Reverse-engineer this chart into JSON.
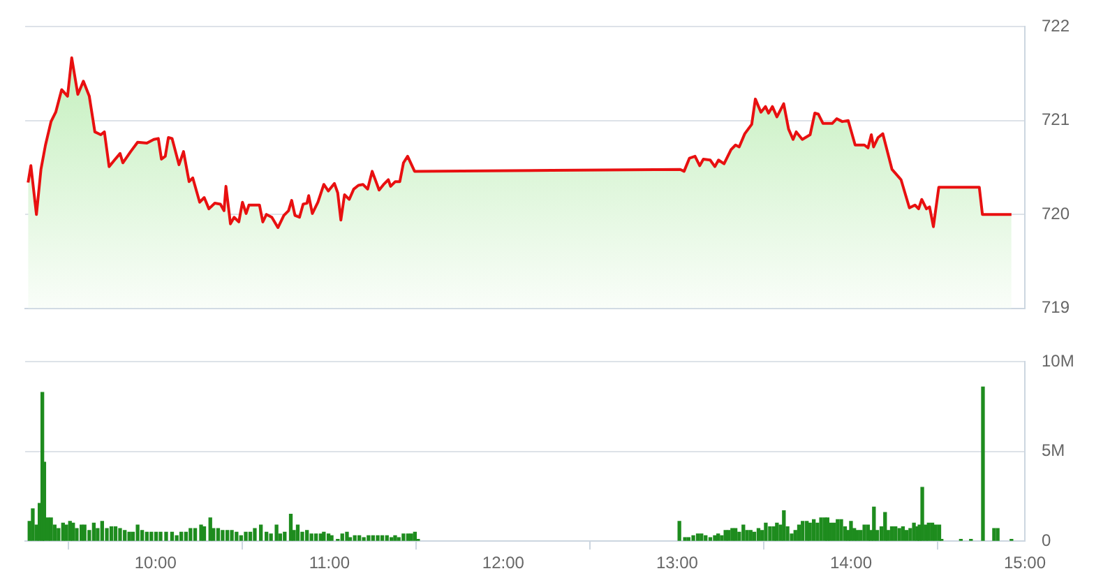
{
  "chart_data": [
    {
      "type": "area",
      "xlim": [
        9.25,
        15
      ],
      "ylim": [
        719,
        722
      ],
      "yticks": [
        719,
        720,
        721,
        722
      ],
      "grid": "y",
      "legend": false,
      "tick_labels": "y",
      "marker": "none",
      "series": [
        {
          "color": "#e81010",
          "x": [
            9.267,
            9.283,
            9.315,
            9.341,
            9.367,
            9.399,
            9.426,
            9.46,
            9.494,
            9.518,
            9.553,
            9.585,
            9.619,
            9.651,
            9.685,
            9.706,
            9.733,
            9.764,
            9.796,
            9.812,
            9.857,
            9.897,
            9.95,
            9.99,
            10.016,
            10.034,
            10.056,
            10.074,
            10.095,
            10.135,
            10.161,
            10.193,
            10.214,
            10.254,
            10.28,
            10.307,
            10.341,
            10.373,
            10.394,
            10.405,
            10.431,
            10.452,
            10.479,
            10.5,
            10.521,
            10.537,
            10.598,
            10.617,
            10.638,
            10.669,
            10.704,
            10.738,
            10.765,
            10.783,
            10.802,
            10.828,
            10.849,
            10.871,
            10.881,
            10.902,
            10.934,
            10.968,
            10.994,
            11.029,
            11.048,
            11.066,
            11.087,
            11.114,
            11.14,
            11.167,
            11.193,
            11.22,
            11.246,
            11.286,
            11.312,
            11.339,
            11.352,
            11.379,
            11.405,
            11.426,
            11.45,
            11.49,
            12.278,
            13.018,
            13.04,
            13.071,
            13.103,
            13.13,
            13.151,
            13.19,
            13.217,
            13.238,
            13.27,
            13.31,
            13.336,
            13.357,
            13.389,
            13.429,
            13.45,
            13.482,
            13.508,
            13.526,
            13.548,
            13.574,
            13.613,
            13.641,
            13.667,
            13.685,
            13.72,
            13.765,
            13.792,
            13.812,
            13.839,
            13.892,
            13.918,
            13.95,
            13.984,
            14.024,
            14.077,
            14.098,
            14.117,
            14.13,
            14.156,
            14.183,
            14.236,
            14.288,
            14.336,
            14.368,
            14.389,
            14.407,
            14.434,
            14.452,
            14.474,
            14.505,
            14.738,
            14.756,
            14.923
          ],
          "values": [
            720.34,
            720.52,
            720.0,
            720.48,
            720.74,
            720.99,
            721.09,
            721.33,
            721.26,
            721.67,
            721.28,
            721.42,
            721.26,
            720.88,
            720.85,
            720.88,
            720.51,
            720.58,
            720.65,
            720.55,
            720.67,
            720.77,
            720.76,
            720.8,
            720.81,
            720.59,
            720.62,
            720.82,
            720.81,
            720.53,
            720.67,
            720.35,
            720.39,
            720.13,
            720.18,
            720.06,
            720.12,
            720.11,
            720.04,
            720.3,
            719.9,
            719.97,
            719.92,
            720.13,
            720.01,
            720.1,
            720.1,
            719.92,
            720.0,
            719.97,
            719.86,
            719.99,
            720.04,
            720.15,
            719.99,
            719.97,
            720.11,
            720.12,
            720.2,
            720.01,
            720.13,
            720.32,
            720.25,
            720.33,
            720.23,
            719.94,
            720.21,
            720.16,
            720.27,
            720.31,
            720.32,
            720.27,
            720.46,
            720.26,
            720.32,
            720.37,
            720.3,
            720.35,
            720.35,
            720.55,
            720.62,
            720.46,
            720.47,
            720.48,
            720.46,
            720.6,
            720.62,
            720.52,
            720.59,
            720.58,
            720.51,
            720.58,
            720.54,
            720.69,
            720.74,
            720.72,
            720.86,
            720.96,
            721.23,
            721.09,
            721.15,
            721.08,
            721.15,
            721.04,
            721.18,
            720.91,
            720.8,
            720.88,
            720.8,
            720.85,
            721.08,
            721.07,
            720.97,
            720.97,
            721.02,
            720.99,
            721.0,
            720.74,
            720.74,
            720.71,
            720.85,
            720.72,
            720.82,
            720.86,
            720.48,
            720.37,
            720.07,
            720.1,
            720.06,
            720.16,
            720.06,
            720.08,
            719.87,
            720.29,
            720.29,
            720.0,
            720.0
          ]
        }
      ]
    },
    {
      "type": "bar",
      "xlim": [
        9.25,
        15
      ],
      "xticks": [
        {
          "value": 10,
          "label": "10:00"
        },
        {
          "value": 11,
          "label": "11:00"
        },
        {
          "value": 12,
          "label": "12:00"
        },
        {
          "value": 13,
          "label": "13:00"
        },
        {
          "value": 14,
          "label": "14:00"
        },
        {
          "value": 15,
          "label": "15:00"
        }
      ],
      "ylim": [
        0,
        10
      ],
      "yticks": [
        {
          "value": 0,
          "label": "0"
        },
        {
          "value": 5,
          "label": "5M"
        },
        {
          "value": 10,
          "label": "10M"
        }
      ],
      "grid": "y",
      "legend": false,
      "series": [
        {
          "color": "#1e8c1e",
          "x": [
            9.275,
            9.294,
            9.315,
            9.333,
            9.349,
            9.36,
            9.381,
            9.399,
            9.42,
            9.442,
            9.468,
            9.487,
            9.508,
            9.526,
            9.547,
            9.574,
            9.592,
            9.619,
            9.645,
            9.667,
            9.693,
            9.72,
            9.746,
            9.77,
            9.796,
            9.823,
            9.849,
            9.87,
            9.897,
            9.923,
            9.95,
            9.976,
            10.003,
            10.029,
            10.061,
            10.095,
            10.122,
            10.148,
            10.175,
            10.201,
            10.228,
            10.262,
            10.28,
            10.315,
            10.333,
            10.36,
            10.386,
            10.413,
            10.439,
            10.466,
            10.492,
            10.519,
            10.545,
            10.571,
            10.606,
            10.638,
            10.664,
            10.696,
            10.717,
            10.743,
            10.778,
            10.796,
            10.818,
            10.844,
            10.871,
            10.897,
            10.923,
            10.95,
            10.968,
            10.995,
            11.013,
            11.048,
            11.074,
            11.101,
            11.119,
            11.146,
            11.172,
            11.198,
            11.225,
            11.251,
            11.278,
            11.304,
            11.331,
            11.357,
            11.378,
            11.399,
            11.426,
            11.452,
            11.471,
            11.492,
            11.51,
            13.013,
            13.045,
            13.066,
            13.093,
            13.119,
            13.14,
            13.164,
            13.191,
            13.217,
            13.236,
            13.257,
            13.278,
            13.296,
            13.317,
            13.336,
            13.357,
            13.381,
            13.402,
            13.423,
            13.444,
            13.468,
            13.489,
            13.51,
            13.534,
            13.556,
            13.574,
            13.595,
            13.614,
            13.635,
            13.659,
            13.68,
            13.701,
            13.722,
            13.746,
            13.764,
            13.786,
            13.807,
            13.828,
            13.849,
            13.865,
            13.881,
            13.902,
            13.923,
            13.944,
            13.966,
            13.984,
            14.0,
            14.019,
            14.037,
            14.056,
            14.077,
            14.098,
            14.114,
            14.132,
            14.151,
            14.175,
            14.196,
            14.214,
            14.235,
            14.256,
            14.278,
            14.299,
            14.32,
            14.341,
            14.362,
            14.381,
            14.394,
            14.41,
            14.429,
            14.447,
            14.468,
            14.487,
            14.508,
            14.521,
            14.632,
            14.69,
            14.751,
            14.759,
            14.823,
            14.844,
            14.923
          ],
          "values": [
            1.1,
            1.8,
            0.9,
            2.1,
            8.3,
            4.4,
            1.3,
            1.3,
            0.9,
            0.7,
            1.0,
            0.9,
            1.1,
            1.0,
            0.7,
            0.9,
            0.9,
            0.6,
            1.0,
            0.7,
            1.1,
            0.7,
            0.8,
            0.8,
            0.7,
            0.6,
            0.5,
            0.5,
            0.9,
            0.6,
            0.5,
            0.5,
            0.5,
            0.5,
            0.5,
            0.5,
            0.3,
            0.5,
            0.5,
            0.7,
            0.7,
            0.9,
            0.8,
            1.3,
            0.7,
            0.7,
            0.6,
            0.6,
            0.6,
            0.5,
            0.3,
            0.5,
            0.5,
            0.7,
            0.9,
            0.5,
            0.4,
            0.9,
            0.4,
            0.5,
            1.5,
            0.6,
            0.9,
            0.5,
            0.6,
            0.4,
            0.4,
            0.4,
            0.5,
            0.4,
            0.3,
            0.1,
            0.4,
            0.5,
            0.2,
            0.3,
            0.3,
            0.2,
            0.3,
            0.3,
            0.3,
            0.3,
            0.3,
            0.2,
            0.3,
            0.2,
            0.4,
            0.4,
            0.4,
            0.5,
            0.1,
            1.1,
            0.2,
            0.2,
            0.3,
            0.4,
            0.4,
            0.3,
            0.2,
            0.3,
            0.4,
            0.3,
            0.6,
            0.6,
            0.7,
            0.7,
            0.5,
            0.9,
            0.6,
            0.6,
            0.5,
            0.7,
            0.6,
            1.0,
            0.8,
            0.8,
            1.0,
            0.9,
            1.7,
            0.8,
            0.4,
            0.6,
            0.9,
            1.1,
            1.1,
            1.0,
            1.2,
            1.0,
            1.3,
            1.3,
            1.3,
            1.0,
            1.0,
            1.2,
            1.2,
            0.8,
            0.6,
            1.1,
            0.7,
            0.6,
            0.6,
            0.9,
            0.9,
            0.6,
            1.9,
            0.6,
            0.8,
            1.6,
            0.6,
            0.8,
            0.8,
            0.7,
            0.8,
            0.6,
            0.7,
            1.0,
            0.8,
            0.9,
            3.0,
            0.9,
            1.0,
            1.0,
            0.9,
            0.9,
            0.1,
            0.1,
            0.1,
            null,
            8.6,
            0.7,
            0.7,
            0.1
          ]
        }
      ]
    }
  ]
}
